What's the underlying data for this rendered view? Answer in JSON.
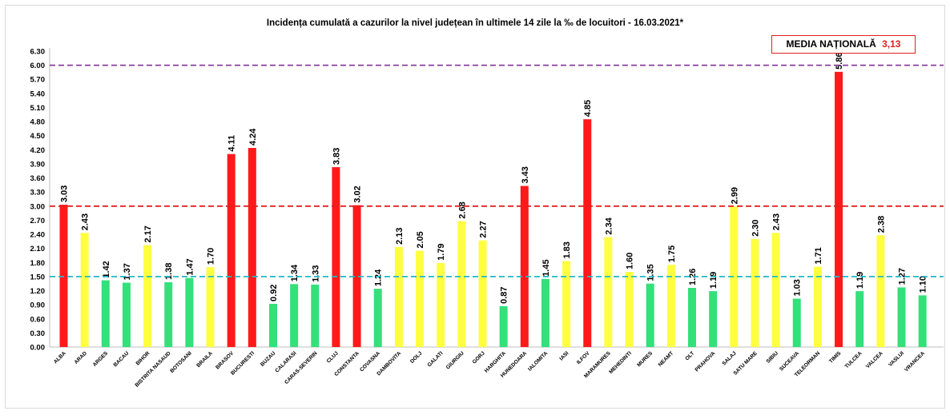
{
  "chart_data": {
    "type": "bar",
    "title": "Incidența cumulată a cazurilor la nivel județean în ultimele 14 zile la ‰ de locuitori - 16.03.2021*",
    "annotation": {
      "label": "MEDIA NAȚIONALĂ",
      "value": "3,13"
    },
    "categories": [
      "ALBA",
      "ARAD",
      "ARGES",
      "BACAU",
      "BIHOR",
      "BISTRITA NASAUD",
      "BOTOSANI",
      "BRAILA",
      "BRASOV",
      "BUCURESTI",
      "BUZAU",
      "CALARASI",
      "CARAS-SEVERIN",
      "CLUJ",
      "CONSTANTA",
      "COVASNA",
      "DAMBOVITA",
      "DOLJ",
      "GALATI",
      "GIURGIU",
      "GORJ",
      "HARGHITA",
      "HUNEDOARA",
      "IALOMITA",
      "IASI",
      "ILFOV",
      "MARAMURES",
      "MEHEDINTI",
      "MURES",
      "NEAMT",
      "OLT",
      "PRAHOVA",
      "SALAJ",
      "SATU MARE",
      "SIBIU",
      "SUCEAVA",
      "TELEORMAN",
      "TIMIS",
      "TULCEA",
      "VALCEA",
      "VASLUI",
      "VRANCEA"
    ],
    "values": [
      3.03,
      2.43,
      1.42,
      1.37,
      2.17,
      1.38,
      1.47,
      1.7,
      4.11,
      4.24,
      0.92,
      1.34,
      1.33,
      3.83,
      3.02,
      1.24,
      2.13,
      2.05,
      1.79,
      2.68,
      2.27,
      0.87,
      3.43,
      1.45,
      1.83,
      4.85,
      2.34,
      1.6,
      1.35,
      1.75,
      1.26,
      1.19,
      2.99,
      2.3,
      2.43,
      1.03,
      1.71,
      5.86,
      1.19,
      2.38,
      1.27,
      1.1
    ],
    "value_labels": [
      "3.03",
      "2.43",
      "1.42",
      "1.37",
      "2.17",
      "1.38",
      "1.47",
      "1.70",
      "4.11",
      "4.24",
      "0.92",
      "1.34",
      "1.33",
      "3.83",
      "3.02",
      "1.24",
      "2.13",
      "2.05",
      "1.79",
      "2.68",
      "2.27",
      "0.87",
      "3.43",
      "1.45",
      "1.83",
      "4.85",
      "2.34",
      "1.60",
      "1.35",
      "1.75",
      "1.26",
      "1.19",
      "2.99",
      "2.30",
      "2.43",
      "1.03",
      "1.71",
      "5.86",
      "1.19",
      "2.38",
      "1.27",
      "1.10"
    ],
    "ylim": [
      0,
      6.3
    ],
    "yticks": [
      "0.00",
      "0.30",
      "0.60",
      "0.90",
      "1.20",
      "1.50",
      "1.80",
      "2.10",
      "2.40",
      "2.70",
      "3.00",
      "3.30",
      "3.60",
      "3.90",
      "4.20",
      "4.50",
      "4.80",
      "5.10",
      "5.40",
      "5.70",
      "6.00",
      "6.30"
    ],
    "thresholds": [
      {
        "value": 1.5,
        "color": "#20b8c8"
      },
      {
        "value": 3.0,
        "color": "#e02020"
      },
      {
        "value": 6.0,
        "color": "#8a3ea0"
      }
    ],
    "colors": {
      "green": "#33e07a",
      "yellow": "#ffff40",
      "red": "#ff1a1a"
    },
    "xlabel": "",
    "ylabel": ""
  }
}
